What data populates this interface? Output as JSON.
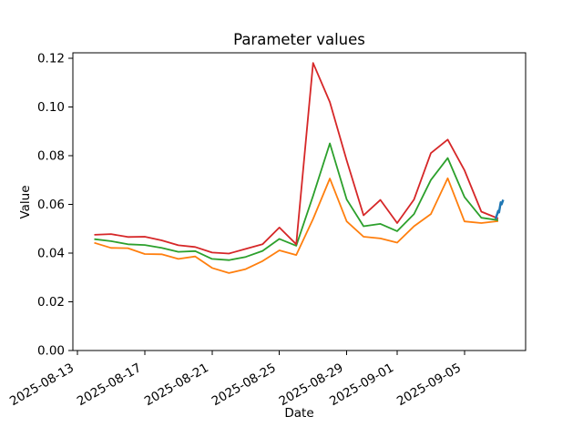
{
  "chart_data": {
    "type": "line",
    "title": "Parameter values",
    "xlabel": "Date",
    "ylabel": "Value",
    "grid": false,
    "legend": null,
    "x_unit": "days since 2025-08-13",
    "x_start_date": "2025-08-14",
    "x_tick_labels": [
      "2025-08-13",
      "2025-08-17",
      "2025-08-21",
      "2025-08-25",
      "2025-08-29",
      "2025-09-01",
      "2025-09-05"
    ],
    "x_tick_days": [
      0,
      4,
      8,
      12,
      16,
      19,
      23
    ],
    "y_tick_labels": [
      "0.00",
      "0.02",
      "0.04",
      "0.06",
      "0.08",
      "0.10",
      "0.12"
    ],
    "y_tick_values": [
      0.0,
      0.02,
      0.04,
      0.06,
      0.08,
      0.1,
      0.12
    ],
    "ylim": [
      0,
      0.1222
    ],
    "xlim_days": [
      -0.27,
      26.63
    ],
    "series": [
      {
        "name": "orange",
        "color": "#ff7f0e",
        "line_width": 1.8,
        "days": [
          1,
          2,
          3,
          4,
          5,
          6,
          7,
          8,
          9,
          10,
          11,
          12,
          13,
          14,
          15,
          16,
          17,
          18,
          19,
          20,
          21,
          22,
          23,
          24,
          25
        ],
        "values": [
          0.0442,
          0.0421,
          0.042,
          0.0396,
          0.0395,
          0.0376,
          0.0386,
          0.0339,
          0.0318,
          0.0334,
          0.0367,
          0.0411,
          0.0392,
          0.054,
          0.0706,
          0.053,
          0.0467,
          0.046,
          0.0443,
          0.051,
          0.056,
          0.0707,
          0.053,
          0.0523,
          0.0531
        ]
      },
      {
        "name": "green",
        "color": "#2ca02c",
        "line_width": 1.8,
        "days": [
          1,
          2,
          3,
          4,
          5,
          6,
          7,
          8,
          9,
          10,
          11,
          12,
          13,
          14,
          15,
          16,
          17,
          18,
          19,
          20,
          21,
          22,
          23,
          24,
          25
        ],
        "values": [
          0.0457,
          0.0449,
          0.0436,
          0.0433,
          0.0421,
          0.0405,
          0.0408,
          0.0376,
          0.0371,
          0.0384,
          0.0409,
          0.0458,
          0.043,
          0.0635,
          0.085,
          0.062,
          0.051,
          0.052,
          0.049,
          0.056,
          0.07,
          0.079,
          0.063,
          0.0545,
          0.0535
        ]
      },
      {
        "name": "red",
        "color": "#d62728",
        "line_width": 1.8,
        "days": [
          1,
          2,
          3,
          4,
          5,
          6,
          7,
          8,
          9,
          10,
          11,
          12,
          13,
          14,
          15,
          16,
          17,
          18,
          19,
          20,
          21,
          22,
          23,
          24,
          25
        ],
        "values": [
          0.0475,
          0.0478,
          0.0466,
          0.0467,
          0.0452,
          0.0432,
          0.0425,
          0.0402,
          0.0398,
          0.0417,
          0.0436,
          0.0505,
          0.0436,
          0.118,
          0.102,
          0.078,
          0.0555,
          0.0618,
          0.0523,
          0.062,
          0.081,
          0.0866,
          0.074,
          0.057,
          0.0542
        ]
      },
      {
        "name": "blue",
        "color": "#1f77b4",
        "line_width": 2.5,
        "days": [
          24.85,
          25.0,
          25.05,
          25.15,
          25.2,
          25.3
        ],
        "values": [
          0.054,
          0.0573,
          0.0567,
          0.0608,
          0.06,
          0.0619
        ]
      }
    ]
  }
}
